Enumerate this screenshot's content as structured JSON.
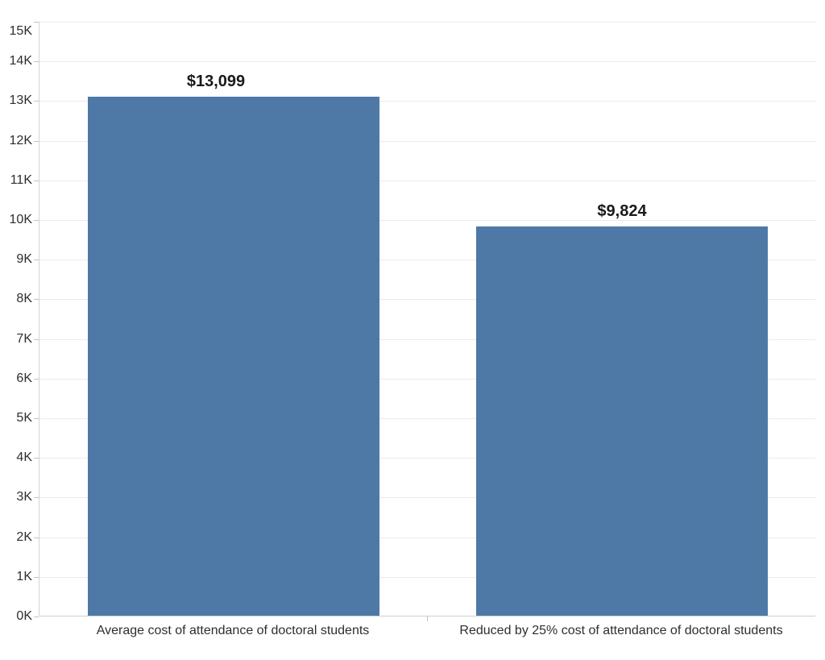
{
  "chart_data": {
    "type": "bar",
    "title": "",
    "xlabel": "",
    "ylabel": "",
    "categories": [
      "Average cost of attendance of doctoral students",
      "Reduced by 25% cost of attendance of doctoral students"
    ],
    "values": [
      13099,
      9824
    ],
    "value_labels": [
      "$13,099",
      "$9,824"
    ],
    "ylim": [
      0,
      15000
    ],
    "ytick_step": 1000,
    "ytick_labels": [
      "0K",
      "1K",
      "2K",
      "3K",
      "4K",
      "5K",
      "6K",
      "7K",
      "8K",
      "9K",
      "10K",
      "11K",
      "12K",
      "13K",
      "14K",
      "15K"
    ],
    "grid": true,
    "legend": false,
    "bar_color": "#4e79a7",
    "value_label_dx": [
      -21,
      1
    ]
  },
  "colors": {
    "bar": "#4e79a7",
    "gridline": "#ebebeb",
    "axis_line": "#d4d4d4",
    "tick": "#c3c3c3",
    "axis_text": "#2e2e2e",
    "value_text": "#1a1a1a",
    "background": "#ffffff"
  }
}
